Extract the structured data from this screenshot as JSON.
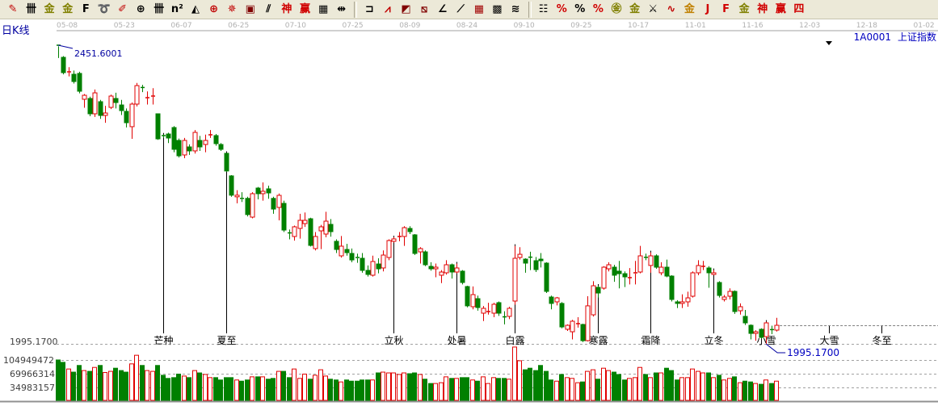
{
  "toolbar": {
    "groups": [
      [
        {
          "icon": "pen-icon",
          "glyph": "✎",
          "color": "#c00000"
        },
        {
          "icon": "vertical-lines-icon",
          "glyph": "卌",
          "color": "#000000"
        },
        {
          "icon": "gold-split-icon",
          "glyph": "金",
          "color": "#808000"
        },
        {
          "icon": "gold-split-2-icon",
          "glyph": "金",
          "color": "#808000"
        },
        {
          "icon": "fibonacci-icon",
          "glyph": "F",
          "color": "#000000"
        },
        {
          "icon": "spiral-icon",
          "glyph": "➰",
          "color": "#000000"
        },
        {
          "icon": "red-pen-icon",
          "glyph": "✐",
          "color": "#c00000"
        },
        {
          "icon": "cycle-circle-icon",
          "glyph": "⊕",
          "color": "#000000"
        },
        {
          "icon": "period-lines-icon",
          "glyph": "卌",
          "color": "#000000"
        },
        {
          "icon": "n-squared-icon",
          "glyph": "n²",
          "color": "#000000"
        },
        {
          "icon": "triangle-icon",
          "glyph": "◭",
          "color": "#000000"
        },
        {
          "icon": "crosshair-circle-icon",
          "glyph": "⊕",
          "color": "#c00000"
        },
        {
          "icon": "gann-star-icon",
          "glyph": "✵",
          "color": "#c00000"
        },
        {
          "icon": "square-target-icon",
          "glyph": "▣",
          "color": "#800000"
        },
        {
          "icon": "angle-lines-icon",
          "glyph": "⫽",
          "color": "#000000"
        },
        {
          "icon": "shen-icon",
          "glyph": "神",
          "color": "#d00000"
        },
        {
          "icon": "ying-icon",
          "glyph": "赢",
          "color": "#d00000"
        },
        {
          "icon": "calendar-icon",
          "glyph": "▦",
          "color": "#000000"
        },
        {
          "icon": "width-arrows-icon",
          "glyph": "⇹",
          "color": "#000000"
        }
      ],
      [
        {
          "icon": "square-frame-icon",
          "glyph": "⊐",
          "color": "#000000"
        },
        {
          "icon": "speed-fan-icon",
          "glyph": "⩘",
          "color": "#c00000"
        },
        {
          "icon": "box-fan-icon",
          "glyph": "◩",
          "color": "#800000"
        },
        {
          "icon": "box-grid-fan-icon",
          "glyph": "⧅",
          "color": "#800000"
        },
        {
          "icon": "gann-fan-icon",
          "glyph": "∠",
          "color": "#000000"
        },
        {
          "icon": "angle-icon",
          "glyph": "⟋",
          "color": "#000000"
        },
        {
          "icon": "grid-icon",
          "glyph": "▦",
          "color": "#a00000"
        },
        {
          "icon": "grid-box-icon",
          "glyph": "▩",
          "color": "#000000"
        },
        {
          "icon": "hatch-lines-icon",
          "glyph": "≋",
          "color": "#000000"
        }
      ],
      [
        {
          "icon": "list-icon",
          "glyph": "☷",
          "color": "#000000"
        },
        {
          "icon": "percent-red-icon",
          "glyph": "%",
          "color": "#d00000"
        },
        {
          "icon": "percent-icon",
          "glyph": "%",
          "color": "#000000"
        },
        {
          "icon": "percent-lines-icon",
          "glyph": "%",
          "color": "#d00000"
        },
        {
          "icon": "gold-circle-icon",
          "glyph": "㊎",
          "color": "#808000"
        },
        {
          "icon": "gold-lines-icon",
          "glyph": "金",
          "color": "#808000"
        },
        {
          "icon": "sword-icon",
          "glyph": "⚔",
          "color": "#000000"
        },
        {
          "icon": "wave-icon",
          "glyph": "∿",
          "color": "#c00000"
        },
        {
          "icon": "gold-red-icon",
          "glyph": "金",
          "color": "#c08000"
        },
        {
          "icon": "j-angle-icon",
          "glyph": "J",
          "color": "#d00000"
        },
        {
          "icon": "f-angle-icon",
          "glyph": "F",
          "color": "#d00000"
        },
        {
          "icon": "gold-angle-icon",
          "glyph": "金",
          "color": "#808000"
        },
        {
          "icon": "shen-angle-icon",
          "glyph": "神",
          "color": "#d00000"
        },
        {
          "icon": "ying-angle-icon",
          "glyph": "赢",
          "color": "#d00000"
        },
        {
          "icon": "si-angle-icon",
          "glyph": "四",
          "color": "#d00000"
        }
      ]
    ]
  },
  "header": {
    "period_label": "日K线",
    "symbol": "1A0001",
    "name": "上证指数",
    "menu_arrow_icon": "triangle-down-icon"
  },
  "colors": {
    "up": "#e00000",
    "down": "#008000",
    "label_blue": "#0000a0",
    "axis_text": "#b0b0b0",
    "grid": "#a0a0a0"
  },
  "chart_data": {
    "type": "candlestick",
    "date_ticks": [
      "05-08",
      "05-23",
      "06-07",
      "06-25",
      "07-10",
      "07-25",
      "08-09",
      "08-24",
      "09-10",
      "09-25",
      "10-17",
      "11-01",
      "11-16",
      "12-03",
      "12-18",
      "01-02"
    ],
    "price_axis_label": "1995.1700",
    "high_label": "2451.6001",
    "low_label": "1995.1700",
    "volume_axis_labels": [
      "104949472",
      "69966314",
      "34983157"
    ],
    "volume_axis_values": [
      104949472,
      69966314,
      34983157
    ],
    "price_range": [
      1995.17,
      2451.6001
    ],
    "solar_terms": [
      {
        "label": "芒种",
        "index": 20
      },
      {
        "label": "夏至",
        "index": 32
      },
      {
        "label": "立秋",
        "index": 64
      },
      {
        "label": "处暑",
        "index": 76
      },
      {
        "label": "白露",
        "index": 87
      },
      {
        "label": "寒露",
        "index": 103
      },
      {
        "label": "霜降",
        "index": 113
      },
      {
        "label": "立冬",
        "index": 125
      },
      {
        "label": "小雪",
        "index": 135
      },
      {
        "label": "大雪",
        "index": 147
      },
      {
        "label": "冬至",
        "index": 157
      }
    ],
    "ohlc": [
      [
        2451.6001,
        2451.6001,
        2432,
        2450
      ],
      [
        2433.1,
        2435,
        2407,
        2409.7
      ],
      [
        2410,
        2418,
        2404,
        2410.9
      ],
      [
        2407.2,
        2413,
        2393,
        2396.1
      ],
      [
        2408.5,
        2411,
        2378,
        2381.3
      ],
      [
        2369,
        2377,
        2356,
        2375.1
      ],
      [
        2370.2,
        2373,
        2343,
        2346.8
      ],
      [
        2346.8,
        2384,
        2342,
        2378.8
      ],
      [
        2365.3,
        2368,
        2339,
        2344.3
      ],
      [
        2344.3,
        2359,
        2333,
        2348
      ],
      [
        2356.6,
        2376,
        2354,
        2373.9
      ],
      [
        2370.2,
        2379,
        2355,
        2364
      ],
      [
        2360.3,
        2368,
        2345,
        2351.7
      ],
      [
        2350.5,
        2355,
        2326,
        2333.2
      ],
      [
        2327.1,
        2364,
        2308.5,
        2361.6
      ],
      [
        2361.6,
        2394,
        2358,
        2389.9
      ],
      [
        2387,
        2391,
        2380,
        2386.2
      ],
      [
        2370.5,
        2381,
        2361,
        2371.4
      ],
      [
        2373,
        2386,
        2361,
        2373.9
      ],
      [
        2346.8,
        2347,
        2307,
        2308.5
      ],
      [
        2313.5,
        2315,
        2310,
        2313
      ],
      [
        2315.9,
        2318,
        2302,
        2309.8
      ],
      [
        2325.8,
        2328,
        2288,
        2292.5
      ],
      [
        2306.1,
        2309,
        2280,
        2282.6
      ],
      [
        2283.9,
        2310,
        2279,
        2306.1
      ],
      [
        2296.2,
        2300,
        2284,
        2290.1
      ],
      [
        2290.1,
        2322,
        2286,
        2318.4
      ],
      [
        2306.1,
        2313,
        2290,
        2296.2
      ],
      [
        2299.9,
        2315,
        2288,
        2306.1
      ],
      [
        2314,
        2322,
        2310,
        2314.7
      ],
      [
        2313.5,
        2316,
        2298,
        2301.2
      ],
      [
        2299.9,
        2302,
        2290,
        2292.5
      ],
      [
        2286.4,
        2287,
        2258,
        2259.4
      ],
      [
        2251.9,
        2253,
        2220,
        2222.4
      ],
      [
        2219.9,
        2230,
        2210,
        2222.4
      ],
      [
        2217.5,
        2227,
        2212,
        2216.3
      ],
      [
        2217.5,
        2220,
        2190,
        2192.8
      ],
      [
        2188.9,
        2227,
        2187,
        2224.7
      ],
      [
        2233.3,
        2235,
        2216,
        2224.7
      ],
      [
        2224.7,
        2242,
        2214,
        2228.4
      ],
      [
        2232.1,
        2237,
        2217,
        2225.9
      ],
      [
        2217.5,
        2220,
        2194,
        2201.2
      ],
      [
        2203.7,
        2225,
        2184,
        2222.2
      ],
      [
        2209.9,
        2214,
        2166,
        2169.1
      ],
      [
        2164.8,
        2170,
        2155,
        2164.2
      ],
      [
        2159.3,
        2176,
        2153,
        2174.1
      ],
      [
        2171.6,
        2194,
        2156,
        2184
      ],
      [
        2179,
        2196,
        2174,
        2184
      ],
      [
        2186.4,
        2188,
        2144,
        2145.7
      ],
      [
        2140.8,
        2166,
        2138,
        2159.3
      ],
      [
        2167.9,
        2177,
        2140,
        2174.1
      ],
      [
        2163,
        2197,
        2158,
        2182.7
      ],
      [
        2177.8,
        2186,
        2159,
        2166.7
      ],
      [
        2151.9,
        2155,
        2134,
        2139.5
      ],
      [
        2129.7,
        2160,
        2127,
        2144.5
      ],
      [
        2139.5,
        2148,
        2130,
        2134.6
      ],
      [
        2133.4,
        2141,
        2120,
        2123.5
      ],
      [
        2127.2,
        2133,
        2119,
        2126
      ],
      [
        2126,
        2134,
        2104,
        2107.5
      ],
      [
        2107.5,
        2115,
        2098,
        2101.3
      ],
      [
        2100.1,
        2130,
        2098,
        2121.1
      ],
      [
        2117.3,
        2126,
        2103,
        2109.9
      ],
      [
        2111.2,
        2138,
        2106,
        2130.9
      ],
      [
        2127.2,
        2155,
        2123,
        2153.1
      ],
      [
        2151.9,
        2158,
        2150,
        2155.6
      ],
      [
        2158.8,
        2166,
        2152,
        2159.3
      ],
      [
        2159.3,
        2175,
        2145,
        2172.8
      ],
      [
        2171.6,
        2175,
        2163,
        2166.7
      ],
      [
        2161.8,
        2163,
        2131,
        2133.4
      ],
      [
        2135.8,
        2143,
        2118,
        2140.8
      ],
      [
        2135.8,
        2138,
        2114,
        2116.1
      ],
      [
        2113.7,
        2120,
        2107,
        2109.9
      ],
      [
        2109.9,
        2118,
        2097,
        2112.4
      ],
      [
        2100.1,
        2108,
        2088,
        2105
      ],
      [
        2103.8,
        2123,
        2101,
        2116.1
      ],
      [
        2116.1,
        2118,
        2095,
        2105
      ],
      [
        2105,
        2118,
        2103,
        2111.2
      ],
      [
        2106.3,
        2108,
        2086,
        2089
      ],
      [
        2082.8,
        2084,
        2051,
        2053.3
      ],
      [
        2052,
        2083,
        2048,
        2070.5
      ],
      [
        2064.3,
        2069,
        2046,
        2050.7
      ],
      [
        2042.1,
        2053,
        2030,
        2049.5
      ],
      [
        2044,
        2058,
        2040,
        2044.6
      ],
      [
        2042.1,
        2058,
        2036,
        2055.7
      ],
      [
        2058.2,
        2060,
        2038,
        2042.1
      ],
      [
        2036.5,
        2045,
        2025,
        2035.9
      ],
      [
        2037.2,
        2052,
        2033,
        2049.5
      ],
      [
        2060.6,
        2145,
        2055,
        2126
      ],
      [
        2127.2,
        2143,
        2124,
        2132.1
      ],
      [
        2124.7,
        2126,
        2104,
        2118.6
      ],
      [
        2127.7,
        2136,
        2108,
        2127.2
      ],
      [
        2122.3,
        2128,
        2105,
        2108.7
      ],
      [
        2124.7,
        2134,
        2112,
        2122.3
      ],
      [
        2118.6,
        2120,
        2073,
        2075.4
      ],
      [
        2066.8,
        2069,
        2048,
        2057
      ],
      [
        2059.4,
        2067,
        2054,
        2065.5
      ],
      [
        2057,
        2059,
        2019,
        2021.1
      ],
      [
        2017.5,
        2025,
        2015,
        2023.6
      ],
      [
        2013.7,
        2032,
        2002,
        2029.8
      ],
      [
        2025.6,
        2036,
        2020,
        2026.1
      ],
      [
        2024.8,
        2026,
        1998,
        2000.1
      ],
      [
        2000.1,
        2068,
        1999,
        2053.3
      ],
      [
        2039.6,
        2091,
        2037,
        2084
      ],
      [
        2081.6,
        2084,
        2066,
        2072.9
      ],
      [
        2080.3,
        2114,
        2078,
        2112.4
      ],
      [
        2109.9,
        2120,
        2106,
        2116.1
      ],
      [
        2112.4,
        2116,
        2090,
        2100.1
      ],
      [
        2106.3,
        2122,
        2080,
        2102.5
      ],
      [
        2102.5,
        2106,
        2082,
        2097.6
      ],
      [
        2096,
        2111,
        2086,
        2096.4
      ],
      [
        2102.5,
        2122,
        2086,
        2103.8
      ],
      [
        2105,
        2145,
        2103,
        2129.7
      ],
      [
        2127.5,
        2133,
        2123,
        2127.2
      ],
      [
        2115,
        2135,
        2104,
        2129.7
      ],
      [
        2129.7,
        2132,
        2110,
        2112.4
      ],
      [
        2103.8,
        2120,
        2100,
        2112.4
      ],
      [
        2112.4,
        2124,
        2097,
        2098.8
      ],
      [
        2098.8,
        2100,
        2060,
        2063.1
      ],
      [
        2059.4,
        2062,
        2050,
        2057
      ],
      [
        2057,
        2071,
        2050,
        2059.4
      ],
      [
        2059.4,
        2075,
        2052,
        2065.5
      ],
      [
        2068,
        2106,
        2066,
        2103.8
      ],
      [
        2103.8,
        2123,
        2100,
        2114.9
      ],
      [
        2113,
        2122,
        2108,
        2113.7
      ],
      [
        2111.2,
        2114,
        2081,
        2103.8
      ],
      [
        2101.3,
        2108,
        2100,
        2103.8
      ],
      [
        2089,
        2091,
        2066,
        2069.2
      ],
      [
        2063.1,
        2070,
        2060,
        2066.8
      ],
      [
        2068,
        2080,
        2063,
        2075.4
      ],
      [
        2075.4,
        2077,
        2041,
        2044.6
      ],
      [
        2045.8,
        2057,
        2040,
        2052
      ],
      [
        2037.2,
        2047,
        2024,
        2027.3
      ],
      [
        2023.6,
        2025,
        2002,
        2011.2
      ],
      [
        2011.2,
        2016,
        2000,
        2013.7
      ],
      [
        2017.5,
        2019,
        2003,
        2005.1
      ],
      [
        2006.3,
        2029,
        1995.17,
        2027.3
      ],
      [
        2017,
        2023,
        2010,
        2016.2
      ],
      [
        2016.2,
        2035,
        2014,
        2023.6
      ]
    ],
    "volume": [
      105000000.0,
      99000000.0,
      82000000.0,
      74000000.0,
      91000000.0,
      78000000.0,
      76000000.0,
      86000000.0,
      91000000.0,
      73000000.0,
      76000000.0,
      84000000.0,
      78000000.0,
      74000000.0,
      95000000.0,
      117000000.0,
      91000000.0,
      78000000.0,
      76000000.0,
      91000000.0,
      66000000.0,
      58000000.0,
      60000000.0,
      69000000.0,
      64000000.0,
      60000000.0,
      78000000.0,
      72000000.0,
      68000000.0,
      60000000.0,
      60000000.0,
      54000000.0,
      60000000.0,
      60000000.0,
      54000000.0,
      51000000.0,
      54000000.0,
      62000000.0,
      62000000.0,
      62000000.0,
      56000000.0,
      58000000.0,
      76000000.0,
      76000000.0,
      60000000.0,
      82000000.0,
      58000000.0,
      69000000.0,
      56000000.0,
      66000000.0,
      80000000.0,
      64000000.0,
      56000000.0,
      54000000.0,
      49000000.0,
      54000000.0,
      51000000.0,
      51000000.0,
      54000000.0,
      54000000.0,
      54000000.0,
      72000000.0,
      74000000.0,
      72000000.0,
      72000000.0,
      68000000.0,
      72000000.0,
      70000000.0,
      72000000.0,
      68000000.0,
      56000000.0,
      45000000.0,
      45000000.0,
      47000000.0,
      62000000.0,
      58000000.0,
      58000000.0,
      60000000.0,
      60000000.0,
      54000000.0,
      51000000.0,
      62000000.0,
      45000000.0,
      60000000.0,
      58000000.0,
      58000000.0,
      56000000.0,
      138000000.0,
      103000000.0,
      80000000.0,
      84000000.0,
      78000000.0,
      91000000.0,
      76000000.0,
      54000000.0,
      51000000.0,
      68000000.0,
      60000000.0,
      58000000.0,
      47000000.0,
      49000000.0,
      76000000.0,
      80000000.0,
      56000000.0,
      84000000.0,
      78000000.0,
      74000000.0,
      68000000.0,
      54000000.0,
      58000000.0,
      60000000.0,
      86000000.0,
      68000000.0,
      60000000.0,
      72000000.0,
      72000000.0,
      84000000.0,
      78000000.0,
      54000000.0,
      60000000.0,
      60000000.0,
      82000000.0,
      76000000.0,
      72000000.0,
      72000000.0,
      60000000.0,
      66000000.0,
      54000000.0,
      58000000.0,
      62000000.0,
      47000000.0,
      51000000.0,
      49000000.0,
      45000000.0,
      43000000.0,
      54000000.0,
      45000000.0,
      51000000.0
    ]
  }
}
